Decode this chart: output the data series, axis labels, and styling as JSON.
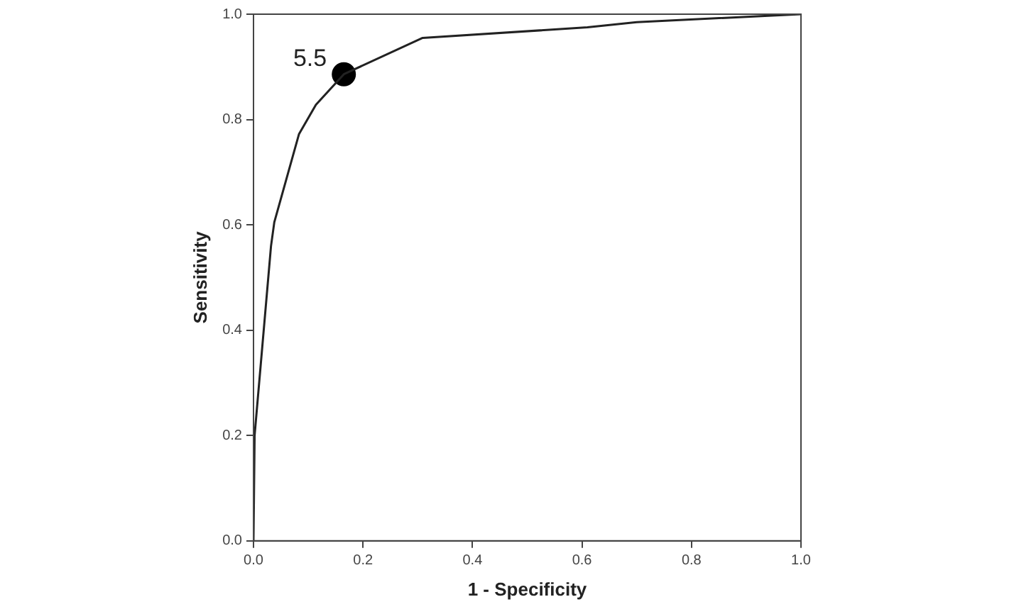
{
  "chart_data": {
    "type": "line",
    "xlabel": "1 - Specificity",
    "ylabel": "Sensitivity",
    "xlim": [
      0,
      1
    ],
    "ylim": [
      0,
      1
    ],
    "xticks": [
      {
        "value": 0,
        "label": "0.0"
      },
      {
        "value": 0.2,
        "label": "0.2"
      },
      {
        "value": 0.4,
        "label": "0.4"
      },
      {
        "value": 0.6,
        "label": "0.6"
      },
      {
        "value": 0.8,
        "label": "0.8"
      },
      {
        "value": 1,
        "label": "1.0"
      }
    ],
    "yticks": [
      {
        "value": 0,
        "label": "0.0"
      },
      {
        "value": 0.2,
        "label": "0.2"
      },
      {
        "value": 0.4,
        "label": "0.4"
      },
      {
        "value": 0.6,
        "label": "0.6"
      },
      {
        "value": 0.8,
        "label": "0.8"
      },
      {
        "value": 1,
        "label": "1.0"
      }
    ],
    "grid": false,
    "legend": false,
    "series": [
      {
        "marker": "none",
        "color": "#222222",
        "x": [
          0,
          0.002,
          0.032,
          0.038,
          0.083,
          0.114,
          0.165,
          0.309,
          0.61,
          0.7,
          1
        ],
        "values": [
          0,
          0.2,
          0.56,
          0.605,
          0.772,
          0.828,
          0.886,
          0.955,
          0.975,
          0.985,
          1
        ]
      },
      {
        "type": "scatter",
        "color": "#000000",
        "x": [
          0.165
        ],
        "values": [
          0.886
        ]
      }
    ],
    "annotations": [
      {
        "text": "5.5",
        "x": 0.165,
        "y": 0.886
      }
    ]
  }
}
